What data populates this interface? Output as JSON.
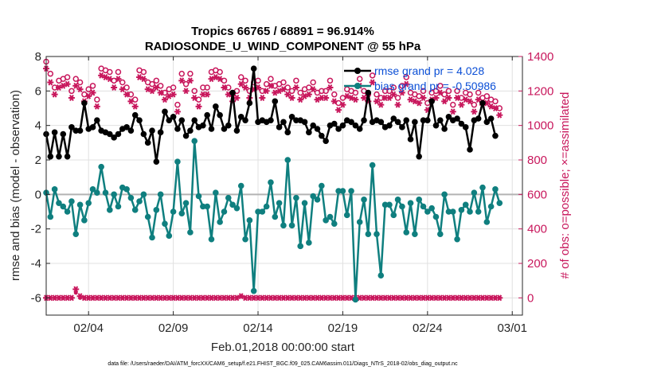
{
  "colors": {
    "rmse": "#000000",
    "bias": "#0f7f7f",
    "obs": "#c8175c",
    "legend_text": "#0b4fd6",
    "grid": "#e0e0e0",
    "zero_line": "#b3b3b3"
  },
  "chart_data": {
    "type": "line",
    "title_line1": "Tropics 66765 / 68891 = 96.914%",
    "title_line2": "RADIOSONDE_U_WIND_COMPONENT @ 55 hPa",
    "xlabel": "Feb.01,2018 00:00:00 start",
    "ylabel_left": "rmse and bias (model - observation)",
    "ylabel_right": "# of obs: o=possible; ×=assimilated",
    "footnote": "data file: /Users/raeder/DAI/ATM_forcXX/CAM6_setup/f.e21.FHIST_BGC.f09_025.CAM6assim.011/Diags_NTrS_2018-02/obs_diag_output.nc",
    "xlim": [
      1.0,
      29.1
    ],
    "x_ticks": [
      3.5,
      8.5,
      13.5,
      18.5,
      23.5,
      28.5
    ],
    "x_tick_labels": [
      "02/04",
      "02/09",
      "02/14",
      "02/19",
      "02/24",
      "03/01"
    ],
    "ylim_left": [
      -7,
      8
    ],
    "y_ticks_left": [
      -6,
      -4,
      -2,
      0,
      2,
      4,
      6,
      8
    ],
    "y_tick_labels_left": [
      "-6",
      "-4",
      "-2",
      "0",
      "2",
      "4",
      "6",
      "8"
    ],
    "ylim_right": [
      -100,
      1400
    ],
    "y_ticks_right": [
      0,
      200,
      400,
      600,
      800,
      1000,
      1200,
      1400
    ],
    "y_tick_labels_right": [
      "0",
      "200",
      "400",
      "600",
      "800",
      "1000",
      "1200",
      "1400"
    ],
    "x_start": 1.0,
    "x_step": 0.25,
    "series": [
      {
        "name": "rmse",
        "legend": "rmse grand pr = 4.028",
        "values": [
          3.5,
          2.2,
          3.6,
          2.2,
          3.5,
          2.2,
          3.9,
          3.7,
          3.7,
          5.3,
          3.8,
          3.9,
          4.3,
          3.7,
          3.6,
          3.5,
          3.3,
          3.5,
          3.8,
          3.9,
          3.7,
          4.6,
          4.3,
          3.5,
          3.0,
          3.7,
          1.9,
          3.6,
          4.8,
          4.3,
          4.5,
          3.8,
          4.3,
          3.4,
          3.7,
          4.3,
          3.9,
          4.0,
          4.6,
          3.8,
          5.1,
          4.6,
          3.8,
          4.0,
          5.9,
          3.7,
          4.5,
          4.3,
          5.3,
          7.3,
          4.2,
          4.3,
          4.2,
          4.3,
          5.4,
          3.9,
          4.2,
          3.6,
          4.5,
          4.3,
          4.3,
          4.2,
          3.6,
          4.0,
          3.8,
          3.4,
          3.1,
          4.0,
          4.1,
          3.8,
          4.0,
          4.3,
          4.2,
          4.0,
          3.8,
          4.3,
          5.9,
          4.2,
          4.3,
          4.2,
          3.9,
          4.0,
          4.4,
          4.2,
          3.9,
          4.3,
          3.2,
          4.2,
          2.2,
          4.3,
          4.3,
          5.4,
          4.0,
          4.3,
          3.8,
          4.5,
          4.3,
          4.4,
          4.1,
          3.9,
          2.6,
          4.3,
          4.4,
          5.3,
          4.2,
          4.4,
          3.4
        ]
      },
      {
        "name": "bias",
        "legend": "bias grand pr = -0.50986",
        "values": [
          0.1,
          -1.3,
          0.3,
          -0.5,
          -0.7,
          -1.0,
          -0.4,
          -2.3,
          -0.6,
          -1.5,
          -0.5,
          0.3,
          0.1,
          1.6,
          0.1,
          -0.9,
          0.0,
          -0.7,
          0.4,
          0.3,
          -0.2,
          -0.9,
          -0.4,
          0.0,
          -1.3,
          -2.5,
          -0.9,
          0.0,
          -1.7,
          -2.4,
          -1.0,
          1.9,
          -1.1,
          -0.5,
          -2.2,
          3.1,
          -0.1,
          -0.7,
          -0.7,
          -2.6,
          0.1,
          -1.6,
          -1.0,
          -0.2,
          -0.6,
          -0.8,
          0.5,
          -2.6,
          -1.5,
          -5.6,
          -1.0,
          -1.0,
          -0.7,
          0.7,
          -1.3,
          -0.5,
          -1.8,
          2.0,
          -1.8,
          -0.2,
          -3.0,
          -0.5,
          -2.8,
          -0.1,
          -0.3,
          0.5,
          -1.5,
          -1.3,
          -1.7,
          0.2,
          0.2,
          -1.2,
          0.2,
          -6.1,
          -1.6,
          -0.3,
          -2.3,
          1.7,
          -2.3,
          -4.7,
          -0.6,
          -0.6,
          -1.2,
          -0.3,
          -0.7,
          -2.2,
          -0.5,
          -2.3,
          -0.3,
          -0.7,
          -1.0,
          -0.8,
          -1.3,
          -2.3,
          0.0,
          -1.0,
          -1.0,
          -2.6,
          -0.9,
          -0.6,
          -1.0,
          0.1,
          -1.0,
          0.4,
          -1.6,
          -0.7,
          0.3,
          -0.5
        ]
      },
      {
        "name": "possible",
        "values": [
          1370,
          1300,
          1220,
          1260,
          1270,
          1280,
          1200,
          1270,
          1250,
          1180,
          1210,
          1230,
          1150,
          1330,
          1320,
          1310,
          1260,
          1310,
          1250,
          1220,
          1180,
          1150,
          1320,
          1310,
          1250,
          1240,
          1260,
          1230,
          1190,
          1210,
          1220,
          1120,
          1300,
          1240,
          1300,
          1200,
          1150,
          1220,
          1220,
          1310,
          1320,
          1310,
          1260,
          1220,
          1180,
          1200,
          1280,
          1260,
          1200,
          1250,
          1260,
          1200,
          1240,
          1270,
          1230,
          1240,
          1250,
          1220,
          1200,
          1260,
          1190,
          1210,
          1220,
          1250,
          1190,
          1200,
          1200,
          1260,
          1180,
          1130,
          1160,
          1210,
          1200,
          1190,
          1270,
          1200,
          1180,
          1290,
          1180,
          1160,
          1200,
          1200,
          1220,
          1160,
          1230,
          1280,
          1190,
          1180,
          1170,
          1200,
          1130,
          1190,
          1200,
          1230,
          1180,
          1200,
          1120,
          1200,
          1160,
          1190,
          1180,
          1120,
          1190,
          1160,
          1170,
          1150,
          1140,
          1100
        ]
      },
      {
        "name": "assimilated",
        "values": [
          1330,
          1250,
          1180,
          1220,
          1230,
          1240,
          1160,
          1230,
          1210,
          1140,
          1170,
          1190,
          1110,
          1290,
          1280,
          1270,
          1220,
          1270,
          1210,
          1180,
          1140,
          1110,
          1280,
          1270,
          1210,
          1200,
          1220,
          1190,
          1150,
          1170,
          1180,
          1080,
          1260,
          1200,
          1260,
          1160,
          1110,
          1180,
          1180,
          1270,
          1280,
          1270,
          1220,
          1180,
          1140,
          1160,
          1240,
          1220,
          1160,
          1210,
          1220,
          1160,
          1200,
          1230,
          1190,
          1200,
          1210,
          1180,
          1160,
          1220,
          1150,
          1170,
          1180,
          1210,
          1150,
          1160,
          1160,
          1220,
          1140,
          1090,
          1120,
          1170,
          1160,
          1150,
          1230,
          1160,
          1140,
          1250,
          1140,
          1120,
          1160,
          1160,
          1180,
          1120,
          1190,
          1240,
          1150,
          1140,
          1130,
          1160,
          1090,
          1150,
          1160,
          1190,
          1140,
          1160,
          1080,
          1160,
          1120,
          1150,
          1140,
          1080,
          1150,
          1120,
          1130,
          1110,
          1100,
          1060
        ]
      }
    ],
    "obs_bottom": {
      "possible": [
        0,
        0,
        0,
        0,
        0,
        0,
        0,
        30,
        0,
        0,
        0,
        0,
        0,
        0,
        0,
        0,
        0,
        0,
        0,
        0,
        0,
        0,
        0,
        0,
        0,
        0,
        0,
        0,
        0,
        0,
        0,
        0,
        0,
        0,
        0,
        0,
        0,
        0,
        0,
        0,
        0,
        0,
        0,
        0,
        0,
        0,
        10,
        0,
        0,
        0,
        0,
        0,
        0,
        0,
        0,
        0,
        0,
        0,
        0,
        0,
        0,
        0,
        0,
        0,
        0,
        0,
        0,
        0,
        0,
        0,
        0,
        0,
        0,
        0,
        0,
        0,
        0,
        0,
        0,
        0,
        0,
        0,
        0,
        0,
        0,
        0,
        0,
        0,
        0,
        0,
        0,
        0,
        0,
        0,
        0,
        0,
        0,
        0,
        0,
        0,
        0,
        0,
        0,
        0,
        0,
        0,
        0,
        0
      ],
      "assimilated": [
        0,
        0,
        0,
        0,
        0,
        0,
        0,
        50,
        10,
        0,
        0,
        0,
        0,
        0,
        0,
        0,
        0,
        0,
        0,
        0,
        0,
        0,
        0,
        0,
        0,
        0,
        0,
        0,
        0,
        0,
        0,
        0,
        0,
        0,
        0,
        0,
        0,
        0,
        0,
        0,
        0,
        0,
        0,
        0,
        0,
        0,
        10,
        0,
        0,
        0,
        0,
        0,
        0,
        0,
        0,
        0,
        0,
        0,
        0,
        0,
        0,
        0,
        0,
        0,
        0,
        0,
        0,
        0,
        0,
        0,
        0,
        0,
        0,
        0,
        0,
        0,
        0,
        0,
        0,
        0,
        0,
        0,
        0,
        0,
        0,
        0,
        0,
        0,
        0,
        0,
        0,
        0,
        0,
        0,
        0,
        0,
        0,
        0,
        0,
        0,
        0,
        0,
        0,
        0,
        0,
        0,
        0,
        0
      ]
    }
  }
}
